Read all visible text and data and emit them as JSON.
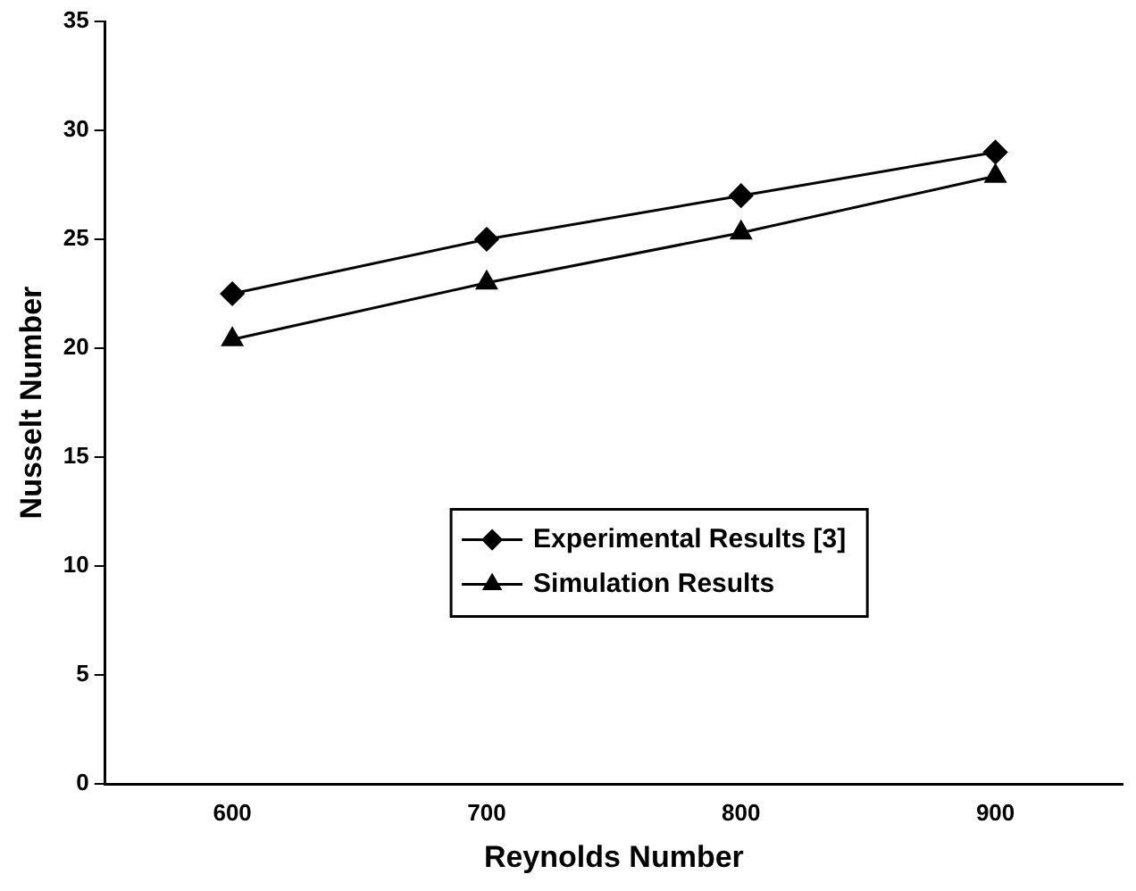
{
  "chart_data": {
    "type": "line",
    "xlabel": "Reynolds Number",
    "ylabel": "Nusselt Number",
    "categories": [
      "600",
      "700",
      "800",
      "900"
    ],
    "series": [
      {
        "name": "Experimental Results [3]",
        "color": "#000000",
        "values": [
          22.5,
          25,
          27,
          29
        ],
        "marker": "diamond"
      },
      {
        "name": "Simulation Results",
        "color": "#000000",
        "values": [
          20.4,
          23,
          25.3,
          27.9
        ],
        "marker": "triangle"
      }
    ],
    "ylim": [
      0,
      35
    ],
    "yticks": [
      0,
      5,
      10,
      15,
      20,
      25,
      30,
      35
    ],
    "grid": false,
    "legend": "bottom right",
    "line_style": "solid"
  }
}
